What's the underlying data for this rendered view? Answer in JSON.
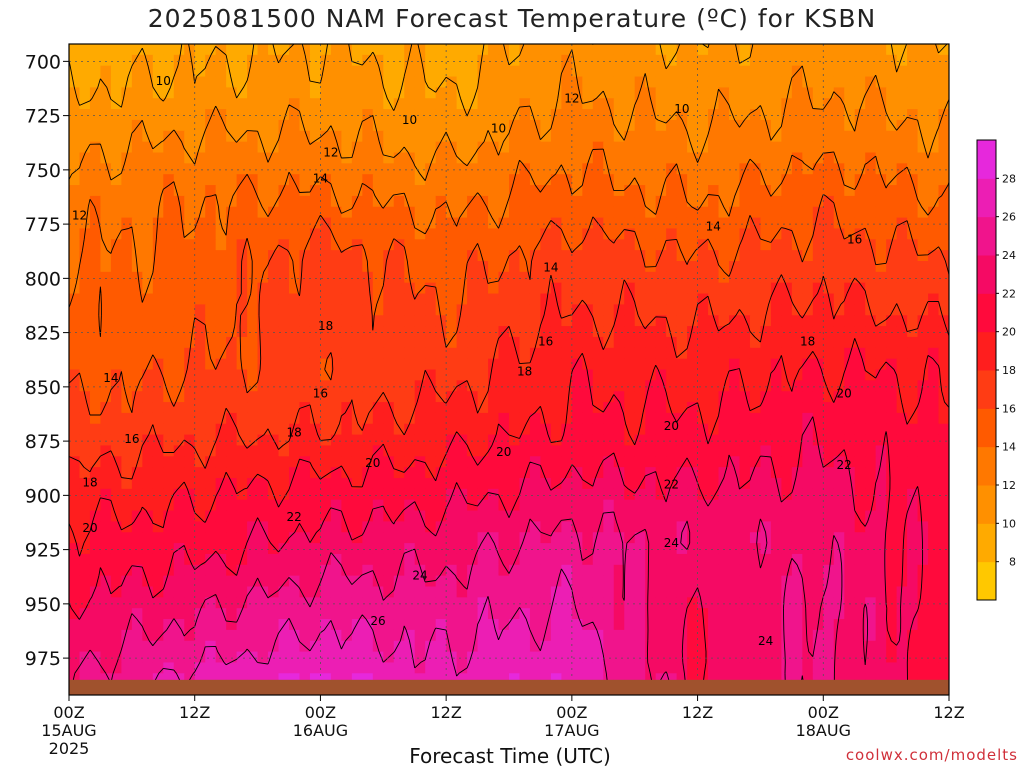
{
  "chart_data": {
    "type": "heatmap",
    "title": "2025081500 NAM Forecast Temperature (ºC) for KSBN",
    "xlabel": "Forecast Time (UTC)",
    "ylabel": "",
    "credit": "coolwx.com/modelts",
    "x_ticks": [
      {
        "hour": 0,
        "label": "00Z",
        "sub": "15AUG",
        "year": "2025"
      },
      {
        "hour": 12,
        "label": "12Z",
        "sub": "",
        "year": ""
      },
      {
        "hour": 24,
        "label": "00Z",
        "sub": "16AUG",
        "year": ""
      },
      {
        "hour": 36,
        "label": "12Z",
        "sub": "",
        "year": ""
      },
      {
        "hour": 48,
        "label": "00Z",
        "sub": "17AUG",
        "year": ""
      },
      {
        "hour": 60,
        "label": "12Z",
        "sub": "",
        "year": ""
      },
      {
        "hour": 72,
        "label": "00Z",
        "sub": "18AUG",
        "year": ""
      },
      {
        "hour": 84,
        "label": "12Z",
        "sub": "",
        "year": ""
      }
    ],
    "y_ticks": [
      700,
      725,
      750,
      775,
      800,
      825,
      850,
      875,
      900,
      925,
      950,
      975
    ],
    "xlim": [
      0,
      84
    ],
    "ylim": [
      692,
      992
    ],
    "surface_pressure": 985,
    "colorbar": {
      "values": [
        8,
        10,
        12,
        14,
        16,
        18,
        20,
        22,
        24,
        26,
        28
      ],
      "range": [
        6,
        30
      ],
      "colors": [
        "#ffc800",
        "#ffaa00",
        "#ff9000",
        "#ff7800",
        "#ff5a00",
        "#ff3c14",
        "#ff1e1e",
        "#ff0a3c",
        "#f50a64",
        "#f0148c",
        "#ec1eb4",
        "#e628dc"
      ]
    },
    "temperature_profiles": [
      {
        "label": "00Z 15AUG",
        "pressure": [
          692,
          715,
          740,
          765,
          790,
          815,
          840,
          870,
          895,
          920,
          950,
          975,
          985
        ],
        "temp_c": [
          9,
          10,
          11.5,
          13,
          14,
          14.5,
          15,
          16.5,
          18.5,
          20.5,
          22,
          23.5,
          24
        ]
      },
      {
        "label": "12Z 15AUG",
        "pressure": [
          692,
          715,
          740,
          765,
          790,
          815,
          840,
          870,
          895,
          920,
          950,
          975,
          985
        ],
        "temp_c": [
          9.5,
          10.5,
          12.5,
          14,
          14.5,
          15,
          16,
          17.5,
          19.5,
          21,
          23.5,
          25.5,
          27
        ]
      },
      {
        "label": "00Z 16AUG",
        "pressure": [
          692,
          715,
          740,
          765,
          790,
          815,
          840,
          870,
          895,
          920,
          950,
          975,
          985
        ],
        "temp_c": [
          10,
          11,
          12.5,
          14.5,
          17,
          17.5,
          16.5,
          18,
          20.5,
          22.5,
          25,
          27,
          28
        ]
      },
      {
        "label": "12Z 16AUG",
        "pressure": [
          692,
          715,
          740,
          765,
          790,
          815,
          840,
          870,
          895,
          920,
          950,
          975,
          985
        ],
        "temp_c": [
          9,
          10,
          11.5,
          13.5,
          15,
          16,
          17,
          19,
          21,
          23,
          25,
          26,
          26.5
        ]
      },
      {
        "label": "00Z 17AUG",
        "pressure": [
          692,
          715,
          740,
          765,
          790,
          815,
          840,
          870,
          895,
          920,
          950,
          975,
          985
        ],
        "temp_c": [
          11,
          12,
          13.5,
          15,
          17,
          18,
          19.5,
          20.5,
          22.5,
          24.5,
          26,
          27.5,
          28
        ]
      },
      {
        "label": "12Z 17AUG",
        "pressure": [
          692,
          715,
          740,
          765,
          790,
          815,
          840,
          870,
          895,
          920,
          950,
          975,
          985
        ],
        "temp_c": [
          10,
          11,
          12.5,
          14,
          16,
          17.5,
          19,
          20.5,
          22,
          23.5,
          22,
          21.5,
          22
        ]
      },
      {
        "label": "00Z 18AUG",
        "pressure": [
          692,
          715,
          740,
          765,
          790,
          815,
          840,
          870,
          895,
          920,
          950,
          975,
          985
        ],
        "temp_c": [
          11,
          12,
          13.5,
          15.5,
          17,
          18.5,
          20,
          21.5,
          22.5,
          23.5,
          24.5,
          24.5,
          24.5
        ]
      },
      {
        "label": "12Z 18AUG",
        "pressure": [
          692,
          715,
          740,
          765,
          790,
          815,
          840,
          870,
          895,
          920,
          950,
          975,
          985
        ],
        "temp_c": [
          10,
          11,
          12.5,
          14,
          16,
          17.5,
          19.5,
          20.5,
          21,
          21,
          21,
          20.5,
          20.5
        ]
      }
    ],
    "contour_labels": [
      {
        "value": "10",
        "hour": 9,
        "p": 709
      },
      {
        "value": "10",
        "hour": 41,
        "p": 731
      },
      {
        "value": "10",
        "hour": 32.5,
        "p": 727
      },
      {
        "value": "10",
        "hour": 58.5,
        "p": 722
      },
      {
        "value": "12",
        "hour": 25,
        "p": 742
      },
      {
        "value": "12",
        "hour": 1,
        "p": 771
      },
      {
        "value": "12",
        "hour": 48,
        "p": 717
      },
      {
        "value": "14",
        "hour": 24,
        "p": 754
      },
      {
        "value": "14",
        "hour": 46,
        "p": 795
      },
      {
        "value": "14",
        "hour": 61.5,
        "p": 776
      },
      {
        "value": "14",
        "hour": 4,
        "p": 846
      },
      {
        "value": "16",
        "hour": 75,
        "p": 782
      },
      {
        "value": "16",
        "hour": 45.5,
        "p": 829
      },
      {
        "value": "16",
        "hour": 24,
        "p": 853
      },
      {
        "value": "16",
        "hour": 6,
        "p": 874
      },
      {
        "value": "18",
        "hour": 24.5,
        "p": 822
      },
      {
        "value": "18",
        "hour": 43.5,
        "p": 843
      },
      {
        "value": "18",
        "hour": 21.5,
        "p": 871
      },
      {
        "value": "18",
        "hour": 70.5,
        "p": 829
      },
      {
        "value": "18",
        "hour": 2,
        "p": 894
      },
      {
        "value": "20",
        "hour": 29,
        "p": 885
      },
      {
        "value": "20",
        "hour": 41.5,
        "p": 880
      },
      {
        "value": "20",
        "hour": 57.5,
        "p": 868
      },
      {
        "value": "20",
        "hour": 74,
        "p": 853
      },
      {
        "value": "20",
        "hour": 2,
        "p": 915
      },
      {
        "value": "22",
        "hour": 21.5,
        "p": 910
      },
      {
        "value": "22",
        "hour": 57.5,
        "p": 895
      },
      {
        "value": "22",
        "hour": 74,
        "p": 886
      },
      {
        "value": "24",
        "hour": 33.5,
        "p": 937
      },
      {
        "value": "24",
        "hour": 57.5,
        "p": 922
      },
      {
        "value": "24",
        "hour": 66.5,
        "p": 967
      },
      {
        "value": "26",
        "hour": 29.5,
        "p": 958
      }
    ]
  }
}
